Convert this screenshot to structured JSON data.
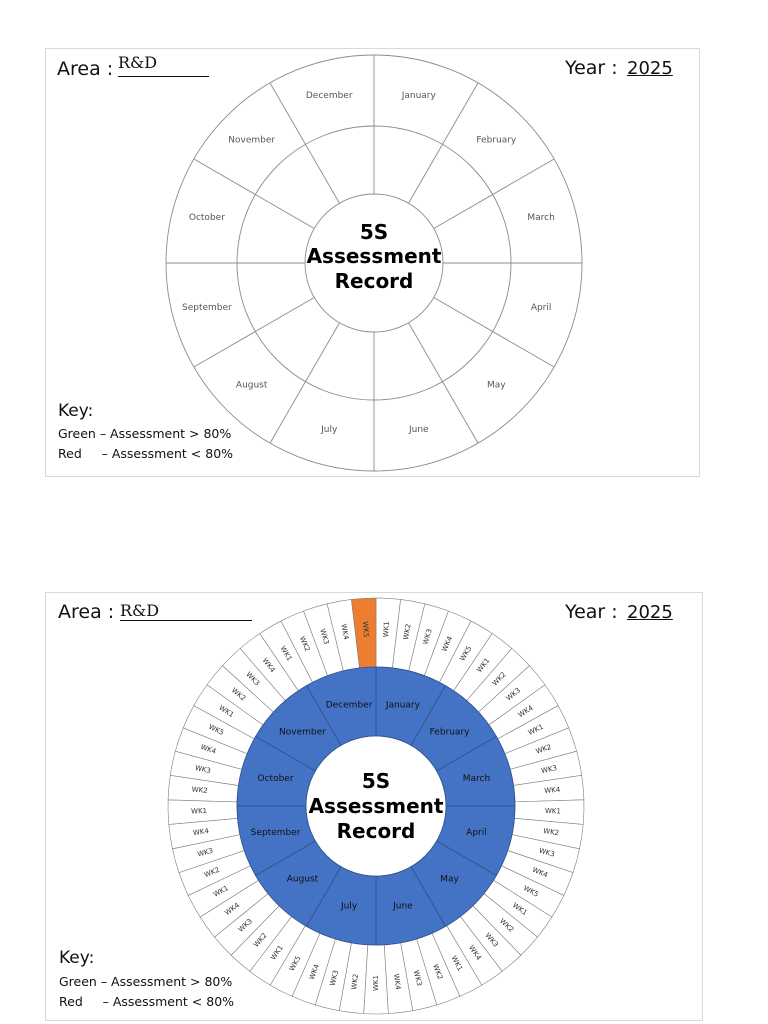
{
  "panels": [
    {
      "area": {
        "label": "Area :",
        "value": "R&D"
      },
      "year": {
        "label": "Year :",
        "value": "2025"
      },
      "title_lines": [
        "5S",
        "Assessment",
        "Record"
      ],
      "key": {
        "title": "Key:",
        "lines": [
          "Green – Assessment > 80%",
          "Red     – Assessment < 80%"
        ]
      },
      "month_ring_color": "#FFFFFF",
      "shows_week_ring": false
    },
    {
      "area": {
        "label": "Area :",
        "value": "R&D"
      },
      "year": {
        "label": "Year :",
        "value": "2025"
      },
      "title_lines": [
        "5S",
        "Assessment",
        "Record"
      ],
      "key": {
        "title": "Key:",
        "lines": [
          "Green – Assessment > 80%",
          "Red     – Assessment < 80%"
        ]
      },
      "month_ring_color": "#4472C4",
      "shows_week_ring": true
    }
  ],
  "months": [
    "January",
    "February",
    "March",
    "April",
    "May",
    "June",
    "July",
    "August",
    "September",
    "October",
    "November",
    "December"
  ],
  "week_ring": [
    {
      "month": "January",
      "weeks": [
        "WK1",
        "WK2",
        "WK3",
        "WK4",
        "WK5"
      ]
    },
    {
      "month": "February",
      "weeks": [
        "WK1",
        "WK2",
        "WK3",
        "WK4"
      ]
    },
    {
      "month": "March",
      "weeks": [
        "WK1",
        "WK2",
        "WK3",
        "WK4"
      ]
    },
    {
      "month": "April",
      "weeks": [
        "WK1",
        "WK2",
        "WK3",
        "WK4",
        "WK5"
      ]
    },
    {
      "month": "May",
      "weeks": [
        "WK1",
        "WK2",
        "WK3",
        "WK4"
      ]
    },
    {
      "month": "June",
      "weeks": [
        "WK1",
        "WK2",
        "WK3",
        "WK4"
      ]
    },
    {
      "month": "July",
      "weeks": [
        "WK1",
        "WK2",
        "WK3",
        "WK4",
        "WK5"
      ]
    },
    {
      "month": "August",
      "weeks": [
        "WK1",
        "WK2",
        "WK3",
        "WK4"
      ]
    },
    {
      "month": "September",
      "weeks": [
        "WK1",
        "WK2",
        "WK3",
        "WK4"
      ]
    },
    {
      "month": "October",
      "weeks": [
        "WK1",
        "WK2",
        "WK3",
        "WK4",
        "WK5"
      ]
    },
    {
      "month": "November",
      "weeks": [
        "WK1",
        "WK2",
        "WK3",
        "WK4"
      ]
    },
    {
      "month": "December",
      "weeks": [
        "WK1",
        "WK2",
        "WK3",
        "WK4",
        "WK5"
      ]
    }
  ],
  "highlighted_weeks": [
    {
      "month": "December",
      "week": "WK5",
      "color": "#ED7D31"
    }
  ],
  "colors": {
    "month_ring_fill": "#4472C4",
    "highlight": "#ED7D31",
    "outline": "#8C8C8C",
    "panel_border": "#D9D9D9"
  }
}
